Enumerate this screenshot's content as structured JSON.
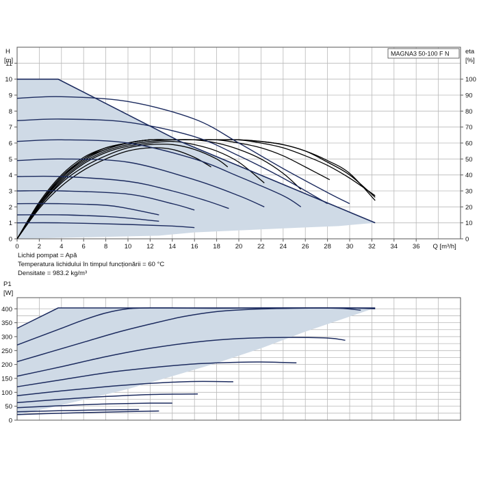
{
  "chart_data": [
    {
      "type": "line",
      "title": "MAGNA3 50-100 F N",
      "xlabel": "Q [m³/h]",
      "ylabel_lines": [
        "H",
        "[m]"
      ],
      "y2label_lines": [
        "eta",
        "[%]"
      ],
      "xlim": [
        0,
        40
      ],
      "ylim": [
        0,
        12
      ],
      "y2lim": [
        0,
        120
      ],
      "xticks": [
        0,
        2,
        4,
        6,
        8,
        10,
        12,
        14,
        16,
        18,
        20,
        22,
        24,
        26,
        28,
        30,
        32,
        34,
        36
      ],
      "yticks": [
        0,
        1,
        2,
        3,
        4,
        5,
        6,
        7,
        8,
        9,
        10,
        11
      ],
      "y2ticks": [
        0,
        10,
        20,
        30,
        40,
        50,
        60,
        70,
        80,
        90,
        100
      ],
      "grid": true,
      "operating_area": [
        [
          0,
          10
        ],
        [
          3.7,
          10
        ],
        [
          14.7,
          6.1
        ],
        [
          32.3,
          1.0
        ],
        [
          29,
          0.8
        ],
        [
          25.6,
          0.7
        ],
        [
          22.3,
          0.6
        ],
        [
          19.1,
          0.5
        ],
        [
          16,
          0.4
        ],
        [
          12.8,
          0.2
        ],
        [
          0,
          0
        ]
      ],
      "head_series": [
        {
          "points": [
            [
              0,
              10
            ],
            [
              3.7,
              10
            ],
            [
              14.7,
              6.1
            ],
            [
              32.3,
              1.0
            ]
          ]
        },
        {
          "points": [
            [
              0,
              8.8
            ],
            [
              4,
              8.9
            ],
            [
              10,
              8.6
            ],
            [
              16,
              7.5
            ],
            [
              20,
              6.0
            ],
            [
              24,
              4.4
            ],
            [
              28,
              2.9
            ],
            [
              30,
              2.2
            ]
          ]
        },
        {
          "points": [
            [
              0,
              7.4
            ],
            [
              4,
              7.5
            ],
            [
              10,
              7.3
            ],
            [
              16,
              6.4
            ],
            [
              20,
              5.2
            ],
            [
              24,
              3.8
            ],
            [
              28,
              2.2
            ]
          ]
        },
        {
          "points": [
            [
              0,
              6.1
            ],
            [
              4,
              6.2
            ],
            [
              10,
              6.0
            ],
            [
              16,
              5.0
            ],
            [
              20,
              3.9
            ],
            [
              24,
              2.7
            ],
            [
              25.6,
              2.0
            ]
          ]
        },
        {
          "points": [
            [
              0,
              4.9
            ],
            [
              4,
              5.0
            ],
            [
              10,
              4.8
            ],
            [
              16,
              3.7
            ],
            [
              20,
              2.7
            ],
            [
              22.3,
              2.0
            ]
          ]
        },
        {
          "points": [
            [
              0,
              3.9
            ],
            [
              4,
              3.9
            ],
            [
              10,
              3.6
            ],
            [
              14,
              3.0
            ],
            [
              17,
              2.4
            ],
            [
              19.1,
              1.9
            ]
          ]
        },
        {
          "points": [
            [
              0,
              3.0
            ],
            [
              4,
              3.0
            ],
            [
              10,
              2.8
            ],
            [
              14,
              2.2
            ],
            [
              16,
              1.8
            ]
          ]
        },
        {
          "points": [
            [
              0,
              2.2
            ],
            [
              4,
              2.2
            ],
            [
              8,
              2.1
            ],
            [
              10,
              1.9
            ],
            [
              12.8,
              1.5
            ]
          ]
        },
        {
          "points": [
            [
              0,
              1.5
            ],
            [
              4,
              1.5
            ],
            [
              8,
              1.4
            ],
            [
              10,
              1.3
            ],
            [
              12.8,
              1.1
            ]
          ]
        },
        {
          "points": [
            [
              0,
              1.0
            ],
            [
              4,
              1.0
            ],
            [
              10,
              0.9
            ],
            [
              14,
              0.8
            ],
            [
              16,
              0.7
            ]
          ]
        }
      ],
      "efficiency_series": [
        {
          "points": [
            [
              0,
              0
            ],
            [
              2,
              19
            ],
            [
              4,
              33
            ],
            [
              6,
              43
            ],
            [
              8,
              50
            ],
            [
              10,
              55
            ],
            [
              12,
              57
            ],
            [
              14,
              56
            ],
            [
              16,
              51
            ],
            [
              17.5,
              45
            ]
          ]
        },
        {
          "points": [
            [
              0,
              0
            ],
            [
              2,
              20
            ],
            [
              4,
              35
            ],
            [
              6,
              45
            ],
            [
              8,
              52
            ],
            [
              10,
              57
            ],
            [
              12,
              59
            ],
            [
              14,
              59
            ],
            [
              16,
              56
            ],
            [
              18,
              50
            ],
            [
              19,
              45
            ]
          ]
        },
        {
          "points": [
            [
              0,
              0
            ],
            [
              2,
              20
            ],
            [
              4,
              36
            ],
            [
              6,
              47
            ],
            [
              8,
              54
            ],
            [
              10,
              58
            ],
            [
              12,
              60
            ],
            [
              14,
              61
            ],
            [
              16,
              59
            ],
            [
              18,
              55
            ],
            [
              20,
              48
            ],
            [
              22.3,
              35
            ]
          ]
        },
        {
          "points": [
            [
              0,
              0
            ],
            [
              2,
              21
            ],
            [
              4,
              37
            ],
            [
              6,
              48
            ],
            [
              8,
              55
            ],
            [
              10,
              59
            ],
            [
              12,
              61
            ],
            [
              14,
              62
            ],
            [
              16,
              62
            ],
            [
              18,
              60
            ],
            [
              20,
              56
            ],
            [
              22,
              50
            ],
            [
              24,
              41
            ],
            [
              25.6,
              31
            ]
          ]
        },
        {
          "points": [
            [
              0,
              0
            ],
            [
              2,
              21
            ],
            [
              4,
              38
            ],
            [
              6,
              49
            ],
            [
              8,
              56
            ],
            [
              10,
              60
            ],
            [
              12,
              62
            ],
            [
              14,
              62
            ],
            [
              16,
              62
            ],
            [
              18,
              62
            ],
            [
              20,
              60
            ],
            [
              22,
              57
            ],
            [
              24,
              52
            ],
            [
              26,
              45
            ],
            [
              28.2,
              37
            ]
          ]
        },
        {
          "points": [
            [
              0,
              0
            ],
            [
              2,
              22
            ],
            [
              4,
              38
            ],
            [
              6,
              50
            ],
            [
              8,
              56
            ],
            [
              10,
              60
            ],
            [
              12,
              62
            ],
            [
              14,
              62
            ],
            [
              16,
              62
            ],
            [
              18,
              62
            ],
            [
              20,
              62
            ],
            [
              22,
              60
            ],
            [
              24,
              57
            ],
            [
              26,
              52
            ],
            [
              28,
              46
            ],
            [
              30,
              38
            ],
            [
              32.3,
              27
            ]
          ]
        },
        {
          "points": [
            [
              0,
              0
            ],
            [
              2,
              22
            ],
            [
              4,
              39
            ],
            [
              6,
              50
            ],
            [
              8,
              57
            ],
            [
              10,
              60
            ],
            [
              12,
              62
            ],
            [
              14,
              62
            ],
            [
              16,
              62
            ],
            [
              18,
              62
            ],
            [
              20,
              62
            ],
            [
              22,
              61
            ],
            [
              24,
              59
            ],
            [
              26,
              55
            ],
            [
              28,
              48
            ],
            [
              30,
              40
            ],
            [
              32.3,
              26
            ]
          ]
        },
        {
          "points": [
            [
              0,
              0
            ],
            [
              2,
              23
            ],
            [
              4,
              40
            ],
            [
              6,
              51
            ],
            [
              8,
              57
            ],
            [
              10,
              60
            ],
            [
              12,
              62
            ],
            [
              14,
              62
            ],
            [
              16,
              62
            ],
            [
              18,
              62
            ],
            [
              20,
              62
            ],
            [
              22,
              61
            ],
            [
              24,
              59
            ],
            [
              26,
              55
            ],
            [
              28,
              49
            ],
            [
              30,
              41
            ],
            [
              32.3,
              24
            ]
          ]
        }
      ]
    },
    {
      "type": "line",
      "ylabel_lines": [
        "P1",
        "[W]"
      ],
      "xlim": [
        0,
        40
      ],
      "ylim": [
        0,
        440
      ],
      "yticks": [
        0,
        50,
        100,
        150,
        200,
        250,
        300,
        350,
        400
      ],
      "grid": true,
      "operating_area": [
        [
          0,
          330
        ],
        [
          3.7,
          403
        ],
        [
          32.3,
          403
        ],
        [
          30,
          372
        ],
        [
          26,
          318
        ],
        [
          22,
          258
        ],
        [
          18,
          205
        ],
        [
          14,
          158
        ],
        [
          10,
          112
        ],
        [
          6,
          73
        ],
        [
          3,
          45
        ],
        [
          0,
          20
        ]
      ],
      "power_series": [
        {
          "points": [
            [
              0,
              330
            ],
            [
              3.7,
              403
            ],
            [
              32.3,
              403
            ]
          ]
        },
        {
          "points": [
            [
              0,
              270
            ],
            [
              2,
              300
            ],
            [
              4,
              330
            ],
            [
              6,
              360
            ],
            [
              8,
              385
            ],
            [
              10,
              400
            ],
            [
              12,
              403
            ],
            [
              14,
              403
            ],
            [
              18,
              402
            ],
            [
              22,
              403
            ],
            [
              26,
              403
            ],
            [
              30,
              403
            ],
            [
              32.3,
              400
            ]
          ]
        },
        {
          "points": [
            [
              0,
              210
            ],
            [
              3,
              245
            ],
            [
              6,
              280
            ],
            [
              9,
              315
            ],
            [
              12,
              345
            ],
            [
              15,
              372
            ],
            [
              18,
              390
            ],
            [
              21,
              398
            ],
            [
              25,
              402
            ],
            [
              29,
              402
            ],
            [
              31,
              395
            ]
          ]
        },
        {
          "points": [
            [
              0,
              158
            ],
            [
              4,
              192
            ],
            [
              8,
              228
            ],
            [
              12,
              258
            ],
            [
              16,
              280
            ],
            [
              20,
              293
            ],
            [
              24,
              297
            ],
            [
              28,
              295
            ],
            [
              29.6,
              287
            ]
          ]
        },
        {
          "points": [
            [
              0,
              120
            ],
            [
              4,
              145
            ],
            [
              8,
              170
            ],
            [
              12,
              188
            ],
            [
              16,
              202
            ],
            [
              20,
              208
            ],
            [
              22,
              209
            ],
            [
              25.2,
              206
            ]
          ]
        },
        {
          "points": [
            [
              0,
              88
            ],
            [
              4,
              105
            ],
            [
              8,
              120
            ],
            [
              12,
              132
            ],
            [
              16,
              139
            ],
            [
              19.5,
              138
            ]
          ]
        },
        {
          "points": [
            [
              0,
              63
            ],
            [
              4,
              75
            ],
            [
              8,
              85
            ],
            [
              12,
              92
            ],
            [
              16.3,
              94
            ]
          ]
        },
        {
          "points": [
            [
              0,
              45
            ],
            [
              4,
              52
            ],
            [
              8,
              58
            ],
            [
              12,
              61
            ],
            [
              14,
              61
            ]
          ]
        },
        {
          "points": [
            [
              0,
              30
            ],
            [
              4,
              34
            ],
            [
              8,
              37
            ],
            [
              11,
              38
            ]
          ]
        },
        {
          "points": [
            [
              0,
              20
            ],
            [
              4,
              25
            ],
            [
              8,
              29
            ],
            [
              12.8,
              33
            ]
          ]
        }
      ]
    }
  ],
  "info": {
    "liquid": "Lichid pompat = Apă",
    "temperature": "Temperatura lichidului în timpul funcționării = 60 °C",
    "density": "Densitate = 983.2 kg/m³"
  }
}
